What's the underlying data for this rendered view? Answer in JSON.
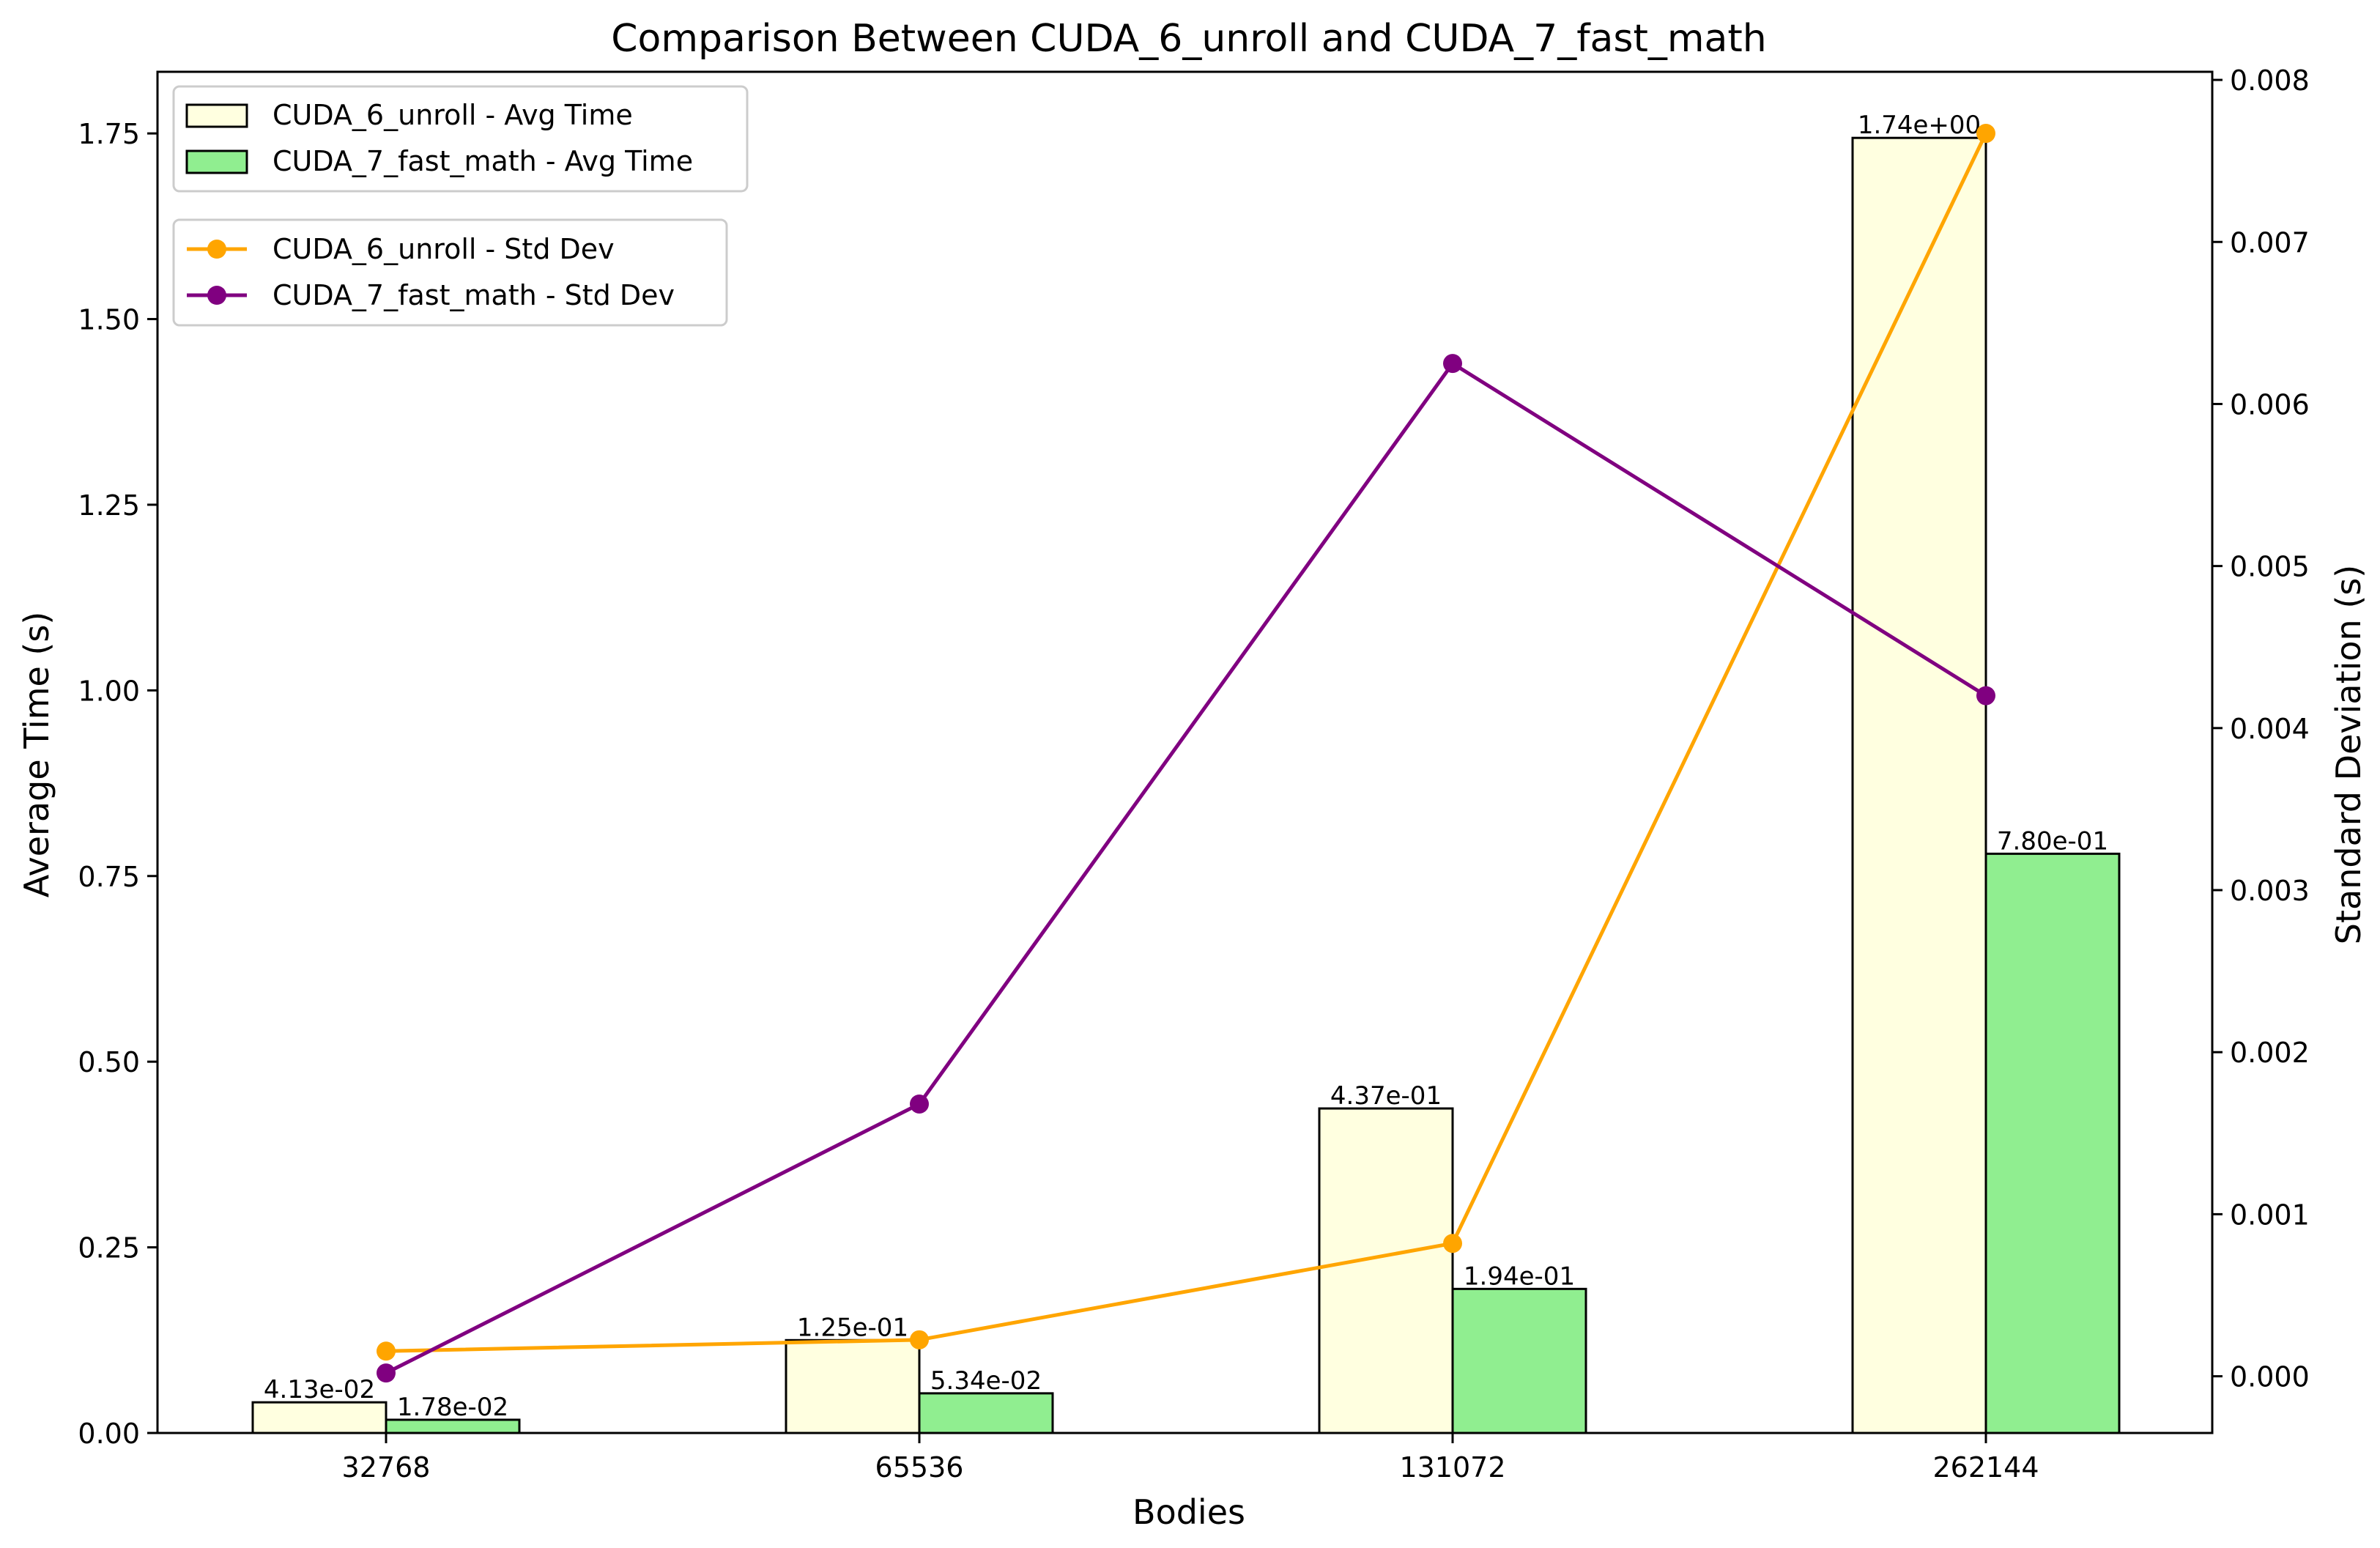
{
  "chart_data": {
    "type": "bar",
    "title": "Comparison Between CUDA_6_unroll and CUDA_7_fast_math",
    "xlabel": "Bodies",
    "ylabel": "Average Time (s)",
    "y2label": "Standard Deviation (s)",
    "categories": [
      "32768",
      "65536",
      "131072",
      "262144"
    ],
    "ylim": [
      0,
      1.833
    ],
    "y2lim": [
      -0.00035,
      0.00805
    ],
    "yticks": [
      "0.00",
      "0.25",
      "0.50",
      "0.75",
      "1.00",
      "1.25",
      "1.50",
      "1.75"
    ],
    "y2ticks": [
      "0.000",
      "0.001",
      "0.002",
      "0.003",
      "0.004",
      "0.005",
      "0.006",
      "0.007",
      "0.008"
    ],
    "grid": false,
    "bar_series": [
      {
        "name": "CUDA_6_unroll - Avg Time",
        "color": "#ffffe0",
        "values": [
          0.0413,
          0.125,
          0.437,
          1.744
        ],
        "labels": [
          "4.13e-02",
          "1.25e-01",
          "4.37e-01",
          "1.74e+00"
        ]
      },
      {
        "name": "CUDA_7_fast_math - Avg Time",
        "color": "#90ee90",
        "values": [
          0.0178,
          0.0534,
          0.194,
          0.78
        ],
        "labels": [
          "1.78e-02",
          "5.34e-02",
          "1.94e-01",
          "7.80e-01"
        ]
      }
    ],
    "line_series": [
      {
        "name": "CUDA_6_unroll - Std Dev",
        "color": "#ffa500",
        "values": [
          0.000155,
          0.000225,
          0.00082,
          0.00767
        ]
      },
      {
        "name": "CUDA_7_fast_math - Std Dev",
        "color": "#800080",
        "values": [
          2e-05,
          0.00168,
          0.00625,
          0.0042
        ]
      }
    ],
    "legend_bars_position": "upper-left",
    "legend_lines_position": "upper-left, below bar legend"
  }
}
